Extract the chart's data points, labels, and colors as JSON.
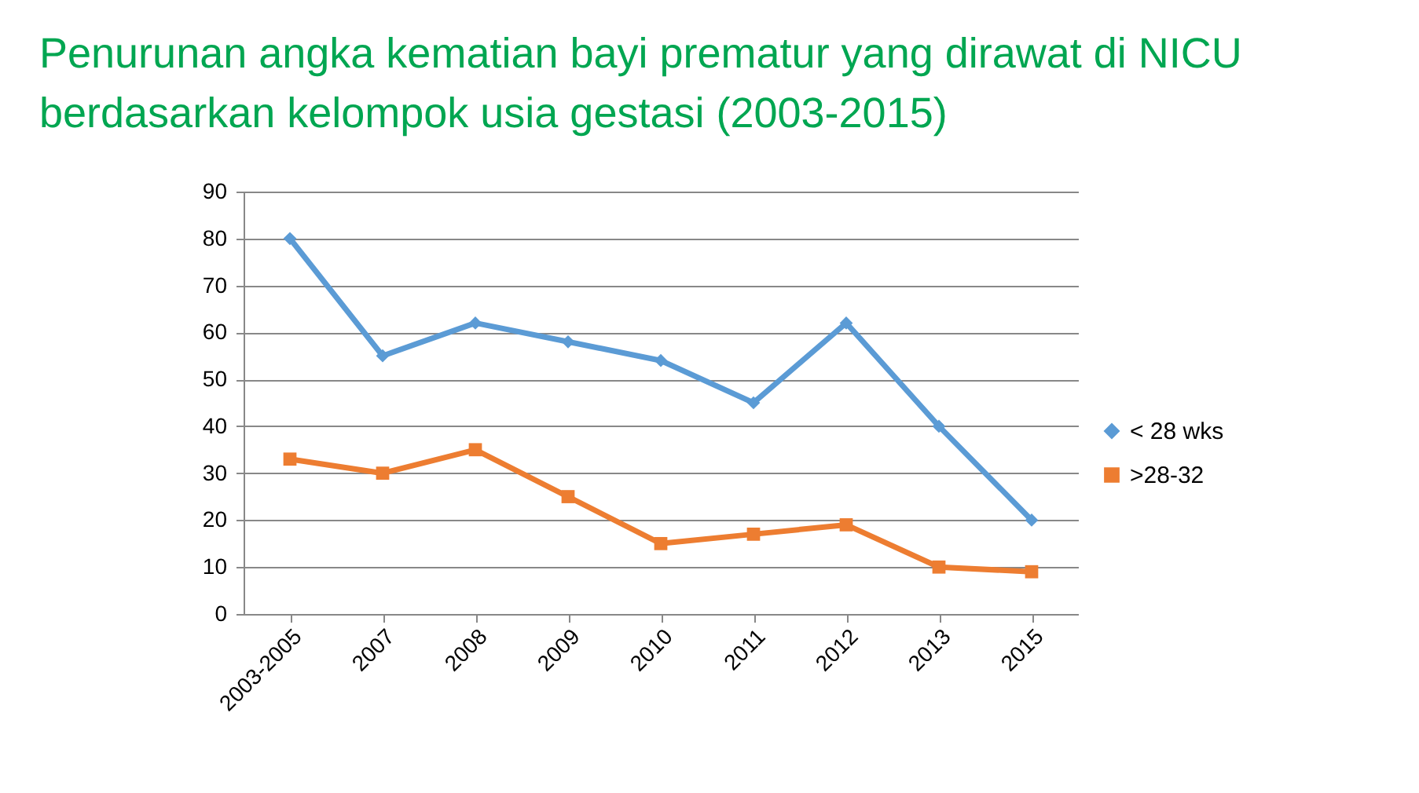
{
  "chart_data": {
    "type": "line",
    "title": "Penurunan angka kematian bayi prematur yang dirawat di NICU berdasarkan kelompok usia gestasi (2003-2015)",
    "categories": [
      "2003-2005",
      "2007",
      "2008",
      "2009",
      "2010",
      "2011",
      "2012",
      "2013",
      "2015"
    ],
    "series": [
      {
        "name": "< 28 wks",
        "color": "#5b9bd5",
        "marker": "diamond",
        "values": [
          80,
          55,
          62,
          58,
          54,
          45,
          62,
          40,
          20
        ]
      },
      {
        "name": ">28-32",
        "color": "#ed7d31",
        "marker": "square",
        "values": [
          33,
          30,
          35,
          25,
          15,
          17,
          19,
          10,
          9
        ]
      }
    ],
    "ylim": [
      0,
      90
    ],
    "yticks": [
      0,
      10,
      20,
      30,
      40,
      50,
      60,
      70,
      80,
      90
    ],
    "grid": "y",
    "legend": "right"
  }
}
